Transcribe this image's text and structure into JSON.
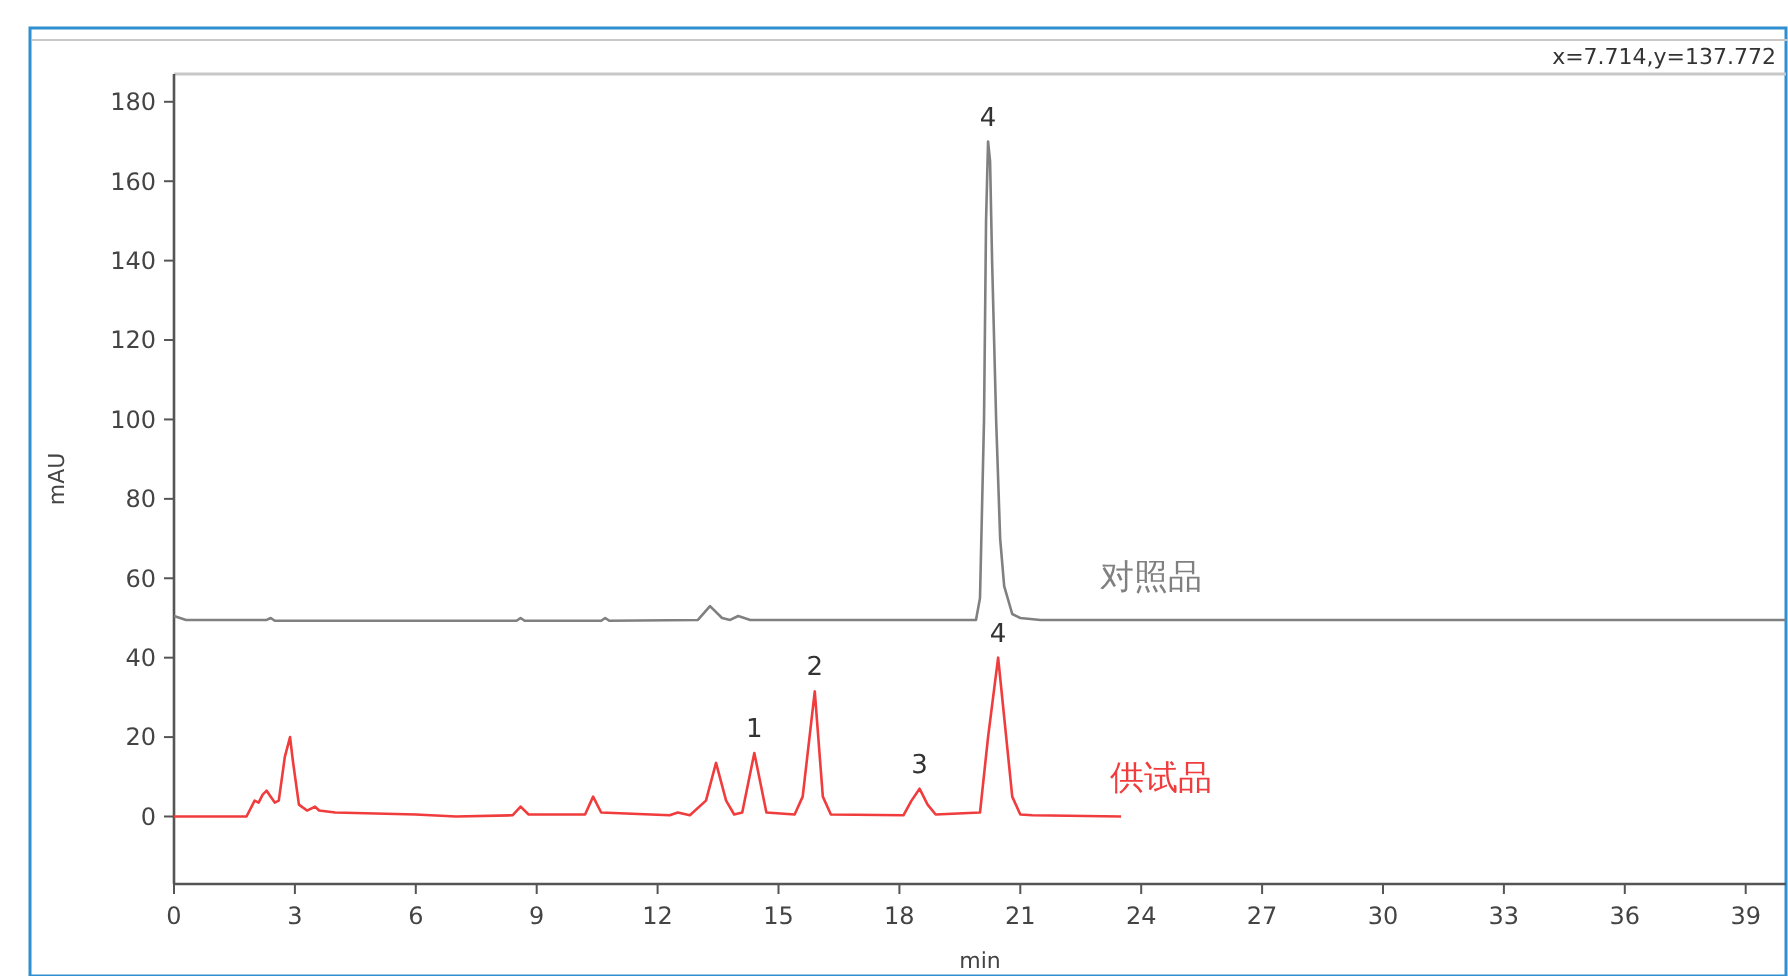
{
  "chart_data": {
    "type": "line",
    "xlabel": "min",
    "ylabel": "mAU",
    "xlim": [
      0,
      40
    ],
    "ylim": [
      -17,
      187
    ],
    "xticks": [
      0,
      3,
      6,
      9,
      12,
      15,
      18,
      21,
      24,
      27,
      30,
      33,
      36,
      39
    ],
    "yticks": [
      0,
      20,
      40,
      60,
      80,
      100,
      120,
      140,
      160,
      180
    ],
    "grid": false,
    "marker": "none",
    "line_style": "solid",
    "series": [
      {
        "name": "对照品",
        "color": "#808080",
        "x": [
          0,
          0.3,
          2.3,
          2.4,
          2.5,
          8.5,
          8.6,
          8.7,
          10.6,
          10.7,
          10.8,
          13.0,
          13.3,
          13.6,
          13.8,
          14.0,
          14.3,
          19.9,
          20.0,
          20.1,
          20.15,
          20.2,
          20.25,
          20.3,
          20.4,
          20.5,
          20.6,
          20.8,
          21.0,
          21.5,
          40
        ],
        "values": [
          50.5,
          49.5,
          49.5,
          50,
          49.3,
          49.3,
          50,
          49.3,
          49.3,
          50,
          49.3,
          49.5,
          53,
          50,
          49.5,
          50.5,
          49.5,
          49.5,
          55,
          100,
          150,
          170,
          165,
          140,
          100,
          70,
          58,
          51,
          50,
          49.5,
          49.5
        ]
      },
      {
        "name": "供试品",
        "color": "#f03c3c",
        "x": [
          0,
          1.8,
          2.0,
          2.1,
          2.2,
          2.3,
          2.4,
          2.5,
          2.6,
          2.75,
          2.88,
          2.95,
          3.1,
          3.3,
          3.5,
          3.6,
          4.0,
          6.0,
          7.0,
          8.4,
          8.6,
          8.8,
          10.2,
          10.4,
          10.6,
          12.3,
          12.5,
          12.8,
          13.2,
          13.45,
          13.7,
          13.9,
          14.1,
          14.4,
          14.7,
          15.4,
          15.6,
          15.9,
          16.1,
          16.3,
          18.1,
          18.3,
          18.5,
          18.7,
          18.9,
          20.0,
          20.2,
          20.45,
          20.6,
          20.8,
          21.0,
          21.3,
          23.5
        ],
        "values": [
          0,
          0,
          4,
          3.5,
          5.5,
          6.5,
          5,
          3.5,
          4,
          15,
          20,
          14,
          3,
          1.5,
          2.5,
          1.5,
          1,
          0.5,
          0,
          0.3,
          2.5,
          0.5,
          0.5,
          5,
          1,
          0.3,
          1,
          0.3,
          4,
          13.5,
          4,
          0.5,
          1,
          16,
          1,
          0.5,
          5,
          31.5,
          5,
          0.5,
          0.3,
          4,
          7,
          3,
          0.5,
          1,
          20,
          40,
          25,
          5,
          0.5,
          0.3,
          0
        ]
      }
    ],
    "annotations": [
      "x=7.714,y=137.772",
      {
        "text": "1",
        "x": 14.4,
        "y": 16
      },
      {
        "text": "2",
        "x": 15.9,
        "y": 31.5
      },
      {
        "text": "3",
        "x": 18.5,
        "y": 7
      },
      {
        "text": "4",
        "x": 20.45,
        "y": 40
      },
      {
        "text": "4",
        "x": 20.2,
        "y": 170
      }
    ]
  }
}
